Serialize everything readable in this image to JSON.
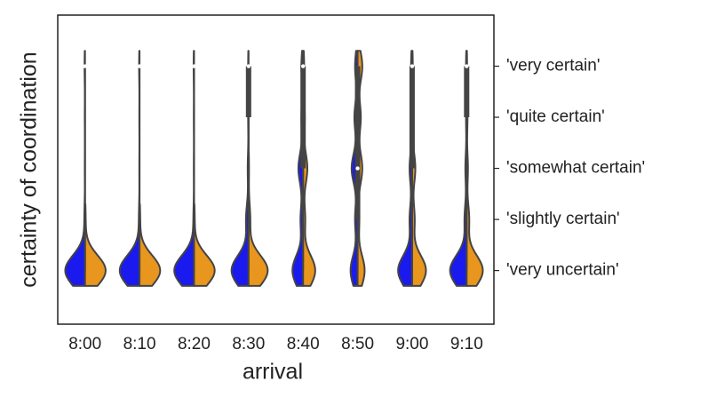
{
  "chart_data": {
    "type": "violin",
    "xlabel": "arrival",
    "ylabel": "certainty of coordination",
    "categories": [
      "8:00",
      "8:10",
      "8:20",
      "8:30",
      "8:40",
      "8:50",
      "9:00",
      "9:10"
    ],
    "ylim": [
      -0.05,
      6.0
    ],
    "yticks": [
      {
        "value": 5,
        "label": "'very certain'"
      },
      {
        "value": 4,
        "label": "'quite certain'"
      },
      {
        "value": 3,
        "label": "'somewhat certain'"
      },
      {
        "value": 2,
        "label": "'slightly certain'"
      },
      {
        "value": 1,
        "label": "'very uncertain'"
      }
    ],
    "series": [
      {
        "color": "#1a1aee",
        "values": [
          [
            0.02,
            0.01,
            0.01,
            0.03,
            0.93
          ],
          [
            0.02,
            0.01,
            0.01,
            0.03,
            0.93
          ],
          [
            0.02,
            0.01,
            0.01,
            0.03,
            0.93
          ],
          [
            0.02,
            0.02,
            0.04,
            0.12,
            0.8
          ],
          [
            0.08,
            0.08,
            0.22,
            0.12,
            0.5
          ],
          [
            0.12,
            0.15,
            0.28,
            0.12,
            0.33
          ],
          [
            0.05,
            0.05,
            0.12,
            0.12,
            0.66
          ],
          [
            0.03,
            0.03,
            0.06,
            0.1,
            0.78
          ]
        ]
      },
      {
        "color": "#e8961e",
        "values": [
          [
            0,
            0,
            0,
            0.03,
            0.97
          ],
          [
            0,
            0,
            0,
            0.03,
            0.97
          ],
          [
            0,
            0,
            0,
            0.03,
            0.97
          ],
          [
            0,
            0,
            0.02,
            0.08,
            0.9
          ],
          [
            0.05,
            0.08,
            0.2,
            0.1,
            0.57
          ],
          [
            0.22,
            0.15,
            0.22,
            0.08,
            0.33
          ],
          [
            0.03,
            0.05,
            0.15,
            0.12,
            0.65
          ],
          [
            0.02,
            0.04,
            0.06,
            0.12,
            0.76
          ]
        ]
      }
    ],
    "boxes": [
      {
        "min": 1,
        "q1": 5,
        "median": 5,
        "q3": 5,
        "max": 5
      },
      {
        "min": 1,
        "q1": 5,
        "median": 5,
        "q3": 5,
        "max": 5
      },
      {
        "min": 1,
        "q1": 5,
        "median": 5,
        "q3": 5,
        "max": 5
      },
      {
        "min": 1,
        "q1": 4,
        "median": 5,
        "q3": 5,
        "max": 5
      },
      {
        "min": 1,
        "q1": 3,
        "median": 5,
        "q3": 5,
        "max": 5
      },
      {
        "min": 1,
        "q1": 2,
        "median": 3,
        "q3": 5,
        "max": 5
      },
      {
        "min": 1,
        "q1": 3,
        "median": 5,
        "q3": 5,
        "max": 5
      },
      {
        "min": 1,
        "q1": 4,
        "median": 5,
        "q3": 5,
        "max": 5
      }
    ]
  }
}
